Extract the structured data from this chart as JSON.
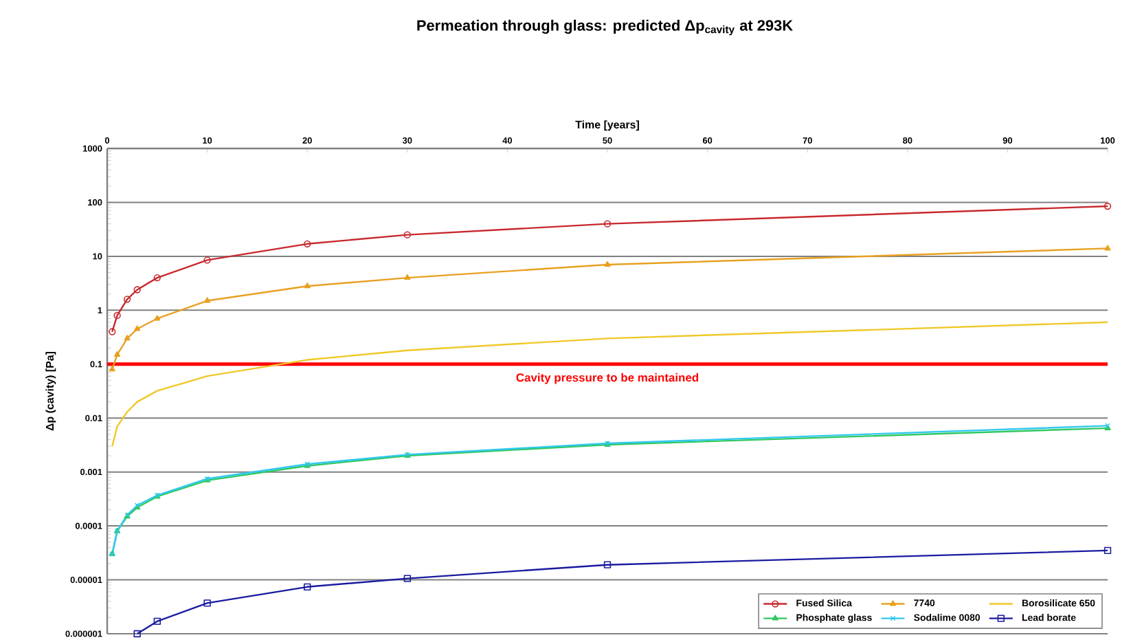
{
  "chart_data": {
    "type": "line",
    "title": "Permeation through glass: predicted Δp$_{cavity}$ at 293K",
    "xlabel": "Time [years]",
    "ylabel": "Δp (cavity) [Pa]",
    "log": "y",
    "grid": "y",
    "legend": "bottom right",
    "line_style": "solid",
    "xlim": [
      0,
      100
    ],
    "xticks": [
      0,
      10,
      20,
      30,
      40,
      50,
      60,
      70,
      80,
      90,
      100
    ],
    "ylim": [
      1e-06,
      1000
    ],
    "yticks": [
      {
        "value": 1e-06,
        "label": "0.000001"
      },
      {
        "value": 1e-05,
        "label": "0.00001"
      },
      {
        "value": 0.0001,
        "label": "0.0001"
      },
      {
        "value": 0.001,
        "label": "0.001"
      },
      {
        "value": 0.01,
        "label": "0.01"
      },
      {
        "value": 0.1,
        "label": "0.1"
      },
      {
        "value": 1,
        "label": "1"
      },
      {
        "value": 10,
        "label": "10"
      },
      {
        "value": 100,
        "label": "100"
      },
      {
        "value": 1000,
        "label": "1000"
      }
    ],
    "ref_lines": [
      {
        "axis": "y",
        "value": 0.1,
        "label": "Cavity pressure to be maintained",
        "color": "#ff0000"
      }
    ],
    "series": [
      {
        "name": "Fused Silica",
        "color": "#c8282d",
        "marker": "circle",
        "x": [
          0.5,
          1,
          2,
          3,
          5,
          10,
          20,
          30,
          50,
          100
        ],
        "values": [
          0.4,
          0.8,
          1.6,
          2.4,
          4,
          8.5,
          17,
          25,
          40,
          85
        ]
      },
      {
        "name": "7740",
        "color": "#e8a020",
        "marker": "triangle",
        "x": [
          0.5,
          1,
          2,
          3,
          5,
          10,
          20,
          30,
          50,
          100
        ],
        "values": [
          0.08,
          0.15,
          0.3,
          0.45,
          0.7,
          1.5,
          2.8,
          4,
          7,
          14
        ]
      },
      {
        "name": "Borosilicate 650",
        "color": "#f0c828",
        "marker": "none",
        "x": [
          0.5,
          1,
          2,
          3,
          5,
          10,
          20,
          30,
          50,
          100
        ],
        "values": [
          0.003,
          0.007,
          0.013,
          0.02,
          0.032,
          0.06,
          0.12,
          0.18,
          0.3,
          0.6
        ]
      },
      {
        "name": "Phosphate glass",
        "color": "#30c860",
        "marker": "triangle",
        "x": [
          0.5,
          1,
          2,
          3,
          5,
          10,
          20,
          30,
          50,
          100
        ],
        "values": [
          3e-05,
          8e-05,
          0.00015,
          0.00022,
          0.00035,
          0.0007,
          0.0013,
          0.002,
          0.0032,
          0.0065
        ]
      },
      {
        "name": "Sodalime 0080",
        "color": "#30c8f0",
        "marker": "cross",
        "x": [
          0.5,
          1,
          2,
          3,
          5,
          10,
          20,
          30,
          50,
          100
        ],
        "values": [
          3e-05,
          8e-05,
          0.00016,
          0.00024,
          0.00037,
          0.00075,
          0.0014,
          0.0021,
          0.0034,
          0.0072
        ]
      },
      {
        "name": "Lead borate",
        "color": "#1a1aa0",
        "marker": "square",
        "x": [
          3,
          5,
          10,
          20,
          30,
          50,
          100
        ],
        "values": [
          1e-06,
          1.7e-06,
          3.7e-06,
          7.4e-06,
          1.06e-05,
          1.9e-05,
          3.5e-05
        ]
      }
    ]
  }
}
